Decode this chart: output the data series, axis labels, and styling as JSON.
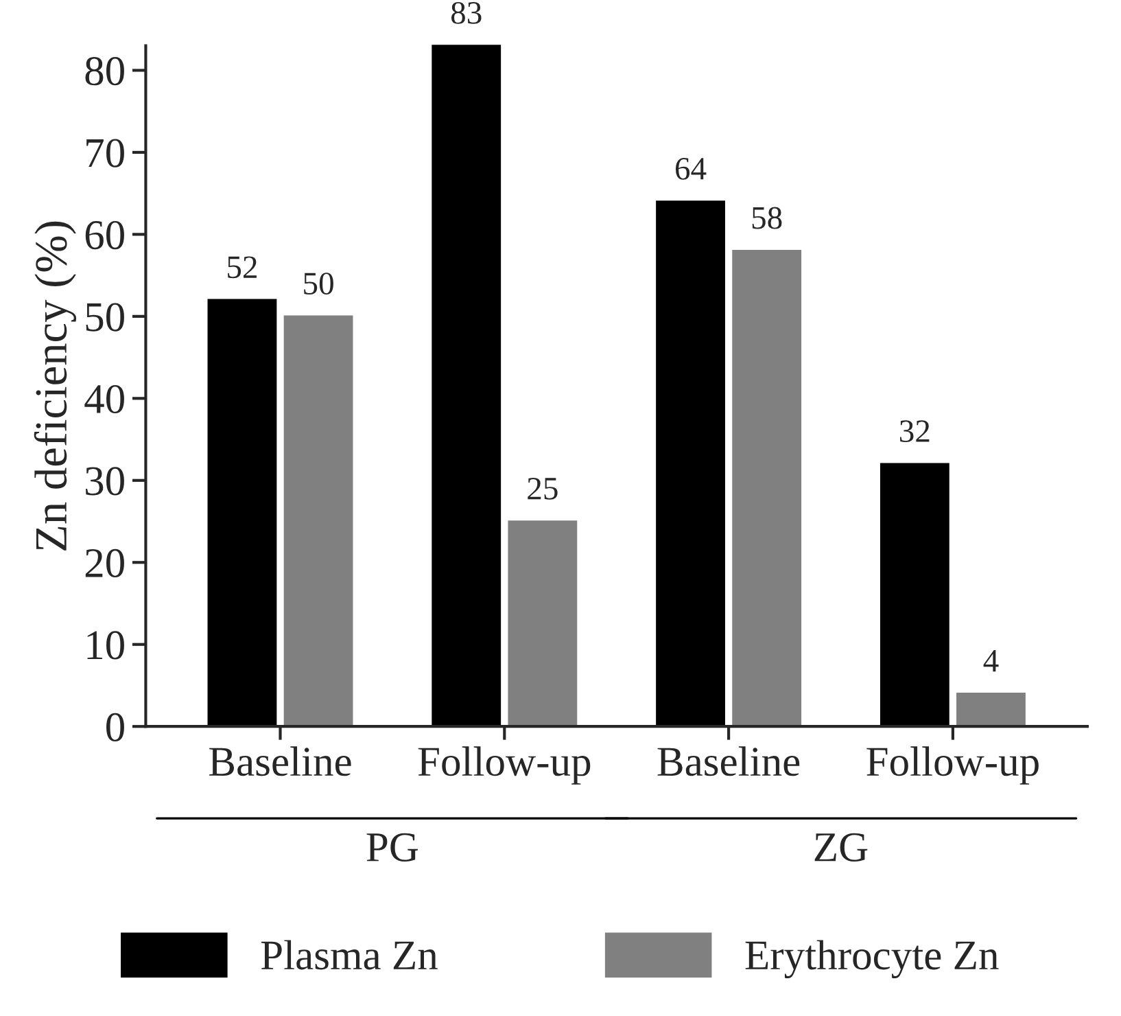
{
  "chart_data": {
    "type": "bar",
    "ylabel": "Zn deficiency (%)",
    "categories": [
      "Baseline",
      "Follow-up",
      "Baseline",
      "Follow-up"
    ],
    "series": [
      {
        "name": "Plasma Zn",
        "color": "#000000",
        "values": [
          52,
          83,
          64,
          32
        ]
      },
      {
        "name": "Erythrocyte Zn",
        "color": "#808080",
        "values": [
          50,
          25,
          58,
          4
        ]
      }
    ],
    "ylim": [
      0,
      83
    ],
    "yticks": [
      0,
      10,
      20,
      30,
      40,
      50,
      60,
      70,
      80
    ],
    "data_labels": true,
    "grid": false,
    "legend": "bottom",
    "annotations": [
      "PG",
      "ZG"
    ]
  }
}
